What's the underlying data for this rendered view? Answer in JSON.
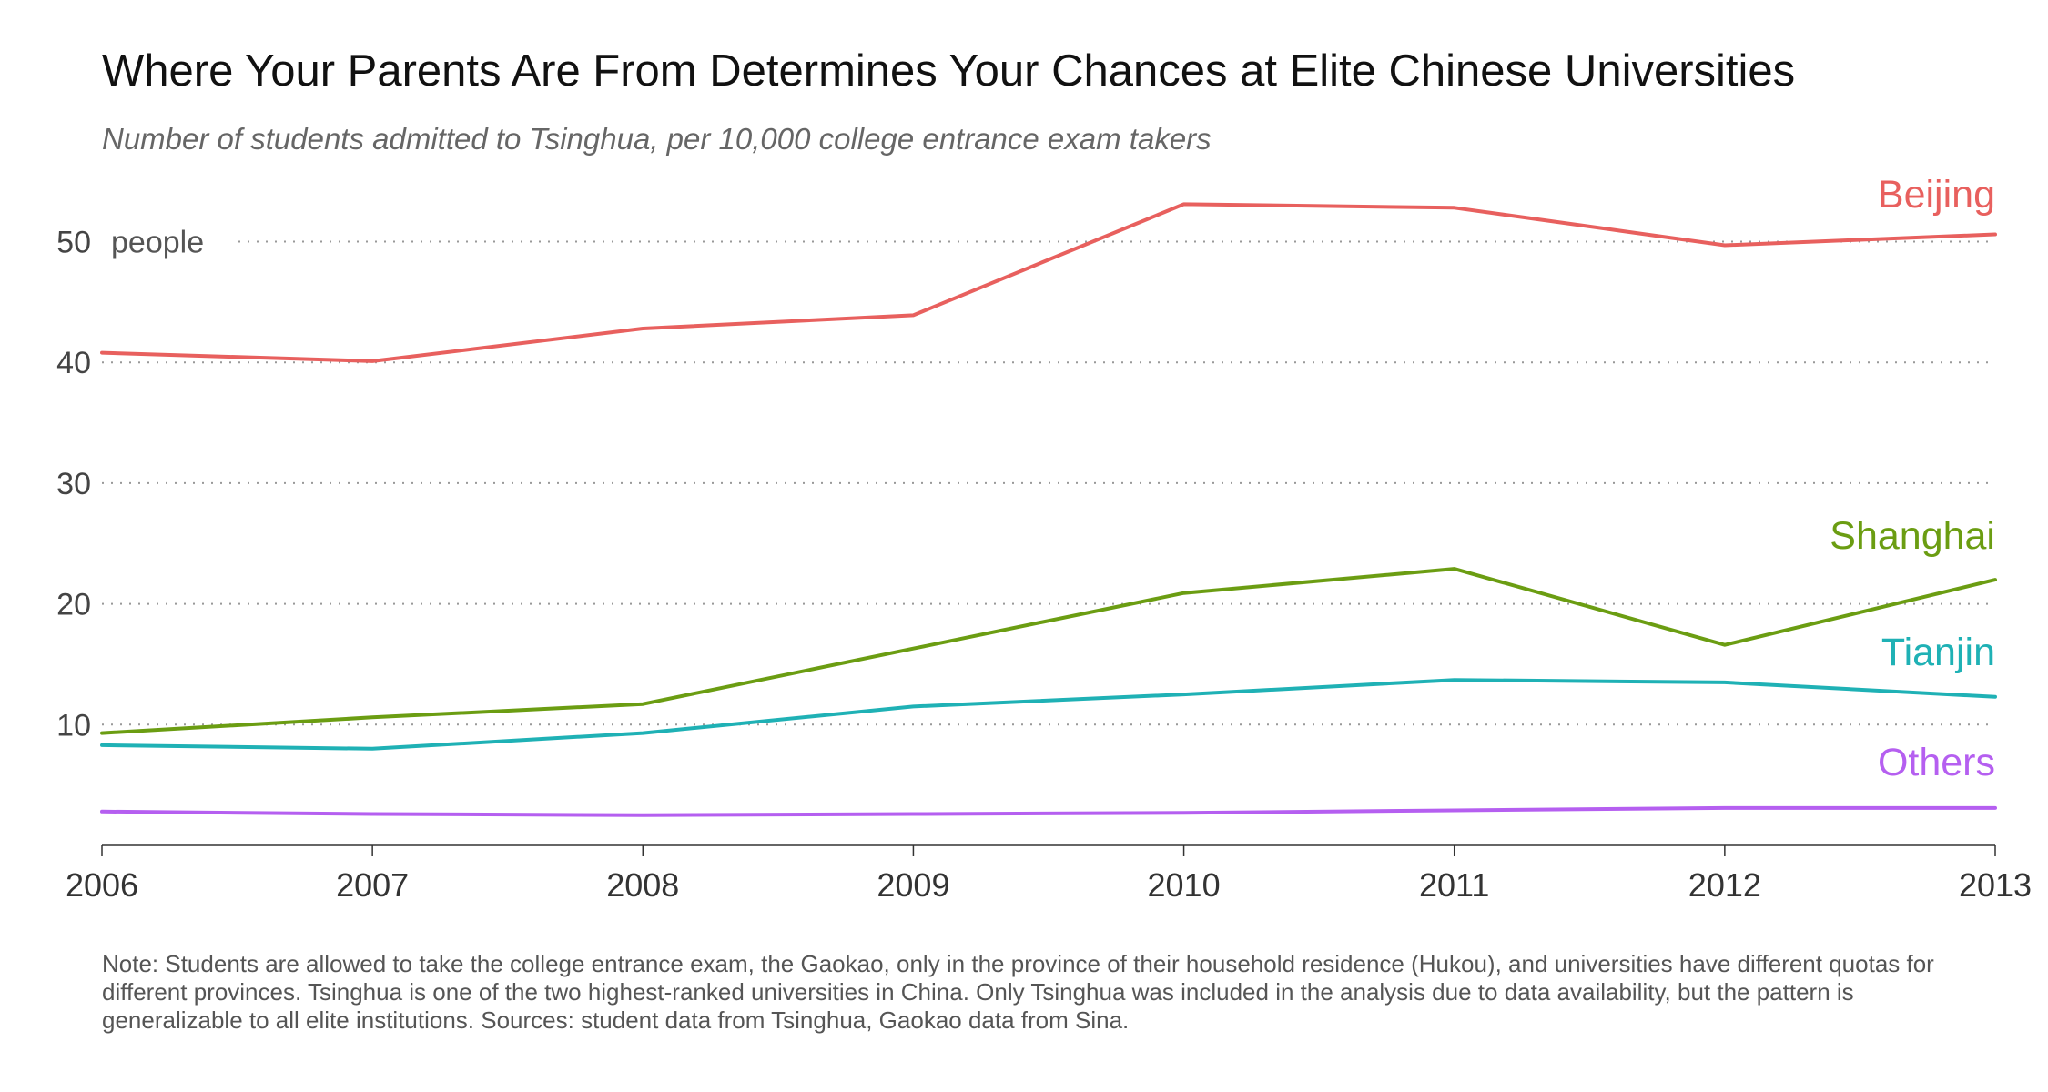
{
  "header": {
    "title": "Where Your Parents Are From Determines Your Chances at Elite Chinese Universities",
    "subtitle": "Number of students admitted to Tsinghua, per 10,000 college entrance exam takers"
  },
  "note": "Note: Students are allowed to take the college entrance exam, the Gaokao, only in the province of their household residence (Hukou), and universities have different quotas for different provinces. Tsinghua is one of the two highest-ranked universities in China. Only Tsinghua was included in the analysis due to data availability, but the pattern is generalizable to all elite institutions. Sources: student data from Tsinghua, Gaokao data from Sina.",
  "chart_data": {
    "type": "line",
    "title": "Where Your Parents Are From Determines Your Chances at Elite Chinese Universities",
    "subtitle": "Number of students admitted to Tsinghua, per 10,000 college entrance exam takers",
    "x": [
      2006,
      2007,
      2008,
      2009,
      2010,
      2011,
      2012,
      2013
    ],
    "xlim": [
      2006,
      2013
    ],
    "ylim": [
      0,
      55
    ],
    "yticks": [
      10,
      20,
      30,
      40,
      50
    ],
    "y_unit_label": "people",
    "grid": "horizontal dotted",
    "legend": "inline labels at right end of lines",
    "series": [
      {
        "name": "Beijing",
        "color": "#e8605e",
        "values": [
          40.8,
          40.1,
          42.8,
          43.9,
          53.1,
          52.8,
          49.7,
          50.6
        ]
      },
      {
        "name": "Shanghai",
        "color": "#6b9d12",
        "values": [
          9.3,
          10.6,
          11.7,
          16.3,
          20.9,
          22.9,
          16.6,
          22.0
        ]
      },
      {
        "name": "Tianjin",
        "color": "#1fb1b5",
        "values": [
          8.3,
          8.0,
          9.3,
          11.5,
          12.5,
          13.7,
          13.5,
          12.3
        ]
      },
      {
        "name": "Others",
        "color": "#b55ff0",
        "values": [
          2.8,
          2.6,
          2.5,
          2.6,
          2.7,
          2.9,
          3.1,
          3.1
        ]
      }
    ]
  }
}
